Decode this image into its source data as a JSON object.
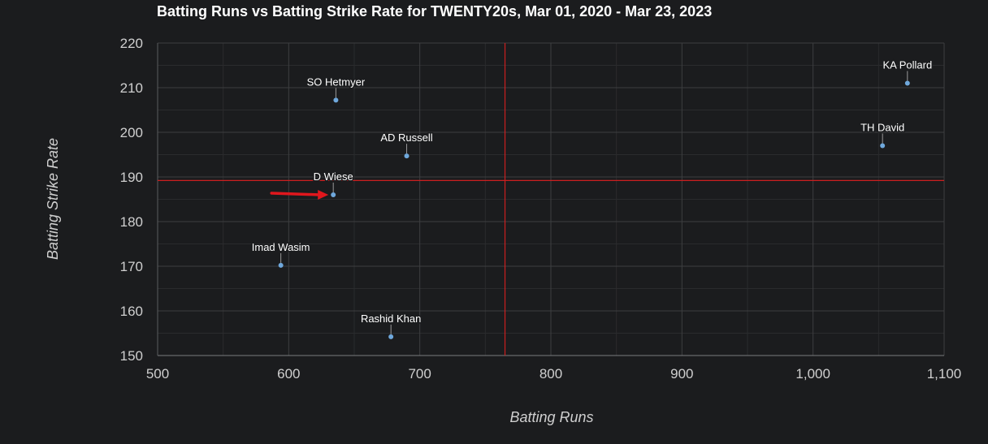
{
  "chart_data": {
    "type": "scatter",
    "title": "Batting Runs vs Batting Strike Rate for TWENTY20s, Mar 01, 2020 - Mar 23, 2023",
    "xlabel": "Batting Runs",
    "ylabel": "Batting Strike Rate",
    "xlim": [
      500,
      1100
    ],
    "ylim": [
      150,
      220
    ],
    "x_ticks": [
      "500",
      "600",
      "700",
      "800",
      "900",
      "1,000",
      "1,100"
    ],
    "y_ticks": [
      "150",
      "160",
      "170",
      "180",
      "190",
      "200",
      "210",
      "220"
    ],
    "x_tick_values": [
      500,
      600,
      700,
      800,
      900,
      1000,
      1100
    ],
    "y_tick_values": [
      150,
      160,
      170,
      180,
      190,
      200,
      210,
      220
    ],
    "grid": true,
    "points": [
      {
        "label": "KA Pollard",
        "x": 1072,
        "y": 211
      },
      {
        "label": "SO Hetmyer",
        "x": 636,
        "y": 207.2
      },
      {
        "label": "TH David",
        "x": 1053,
        "y": 197
      },
      {
        "label": "AD Russell",
        "x": 690,
        "y": 194.7
      },
      {
        "label": "D Wiese",
        "x": 634,
        "y": 186
      },
      {
        "label": "Imad Wasim",
        "x": 594,
        "y": 170.2
      },
      {
        "label": "Rashid Khan",
        "x": 678,
        "y": 154.2
      }
    ],
    "reference_lines": {
      "x": 765,
      "y": 189.2
    },
    "highlighted_point": "D Wiese",
    "colors": {
      "background": "#1b1c1e",
      "point": "#6fa8dc",
      "reference": "#cc1f1f",
      "arrow": "#e0171d",
      "grid_major": "#3d3e40",
      "grid_minor": "#2a2b2d"
    }
  }
}
